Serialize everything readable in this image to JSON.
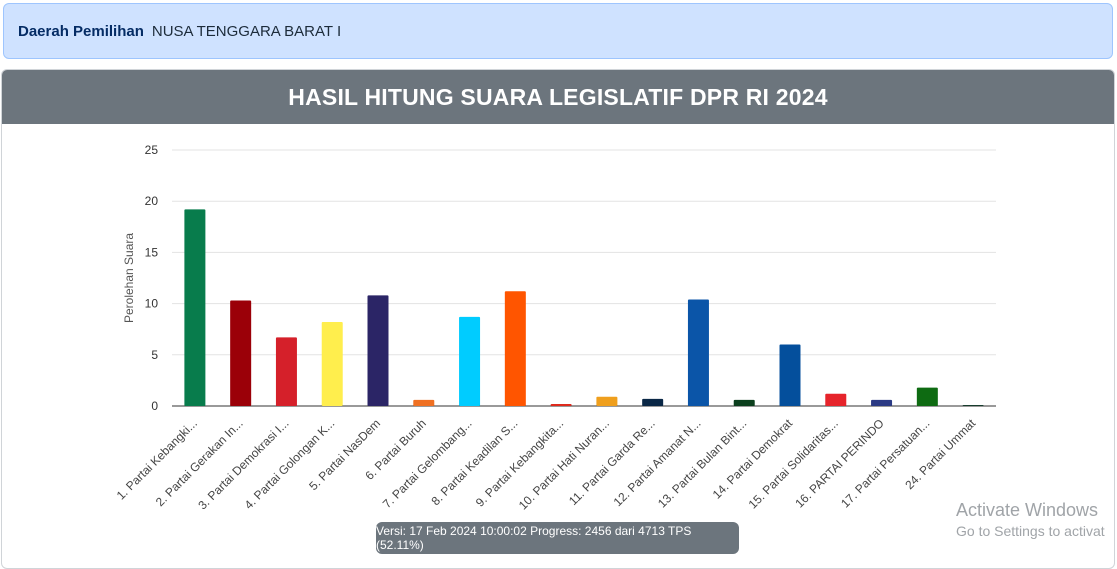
{
  "alert": {
    "label": "Daerah Pemilihan",
    "value": "NUSA TENGGARA BARAT I"
  },
  "card": {
    "title": "HASIL HITUNG SUARA LEGISLATIF DPR RI 2024"
  },
  "version_text": "Versi: 17 Feb 2024 10:00:02 Progress: 2456 dari 4713 TPS (52.11%)",
  "watermark": {
    "line1": "Activate Windows",
    "line2": "Go to Settings to activat"
  },
  "chart_data": {
    "type": "bar",
    "title": "",
    "xlabel": "",
    "ylabel": "Perolehan Suara",
    "ylim": [
      0,
      25
    ],
    "yticks": [
      0,
      5,
      10,
      15,
      20,
      25
    ],
    "grid": true,
    "categories": [
      "1. Partai Kebangki...",
      "2. Partai Gerakan In...",
      "3. Partai Demokrasi I...",
      "4. Partai Golongan K...",
      "5. Partai NasDem",
      "6. Partai Buruh",
      "7. Partai Gelombang...",
      "8. Partai Keadilan S...",
      "9. Partai Kebangkita...",
      "10. Partai Hati Nuran...",
      "11. Partai Garda Re...",
      "12. Partai Amanat N...",
      "13. Partai Bulan Bint...",
      "14. Partai Demokrat",
      "15. Partai Solidaritas...",
      "16. PARTAI PERINDO",
      "17. Partai Persatuan...",
      "24. Partai Ummat"
    ],
    "values": [
      19.2,
      10.3,
      6.7,
      8.2,
      10.8,
      0.6,
      8.7,
      11.2,
      0.2,
      0.9,
      0.7,
      10.4,
      0.6,
      6.0,
      1.2,
      0.6,
      1.8,
      0.1
    ],
    "colors": [
      "#087c4c",
      "#9b0008",
      "#d5202a",
      "#ffee4d",
      "#2b2566",
      "#ef7022",
      "#00ccff",
      "#ff5500",
      "#de2a1d",
      "#ef9f1d",
      "#0a2746",
      "#0b55a8",
      "#0b3f1d",
      "#044f9c",
      "#e6242b",
      "#2b3a84",
      "#0e6b12",
      "#183d2e"
    ]
  }
}
